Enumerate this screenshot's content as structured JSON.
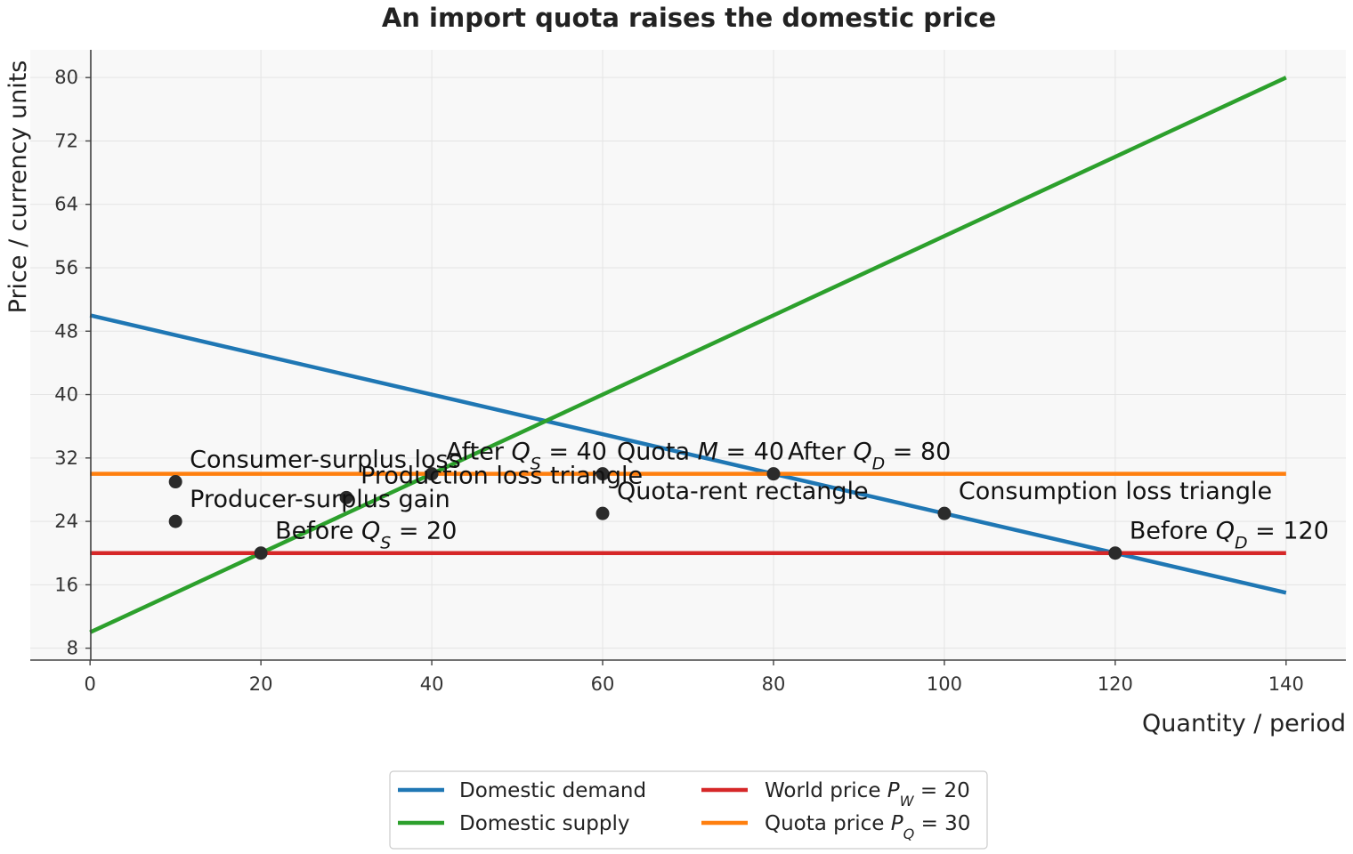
{
  "chart_data": {
    "type": "line",
    "title": "An import quota raises the domestic price",
    "xlabel": "Quantity / period",
    "ylabel": "Price / currency units",
    "xlim": [
      -7,
      147
    ],
    "ylim": [
      6.5,
      83.5
    ],
    "xticks": [
      0,
      20,
      40,
      60,
      80,
      100,
      120,
      140
    ],
    "yticks": [
      8,
      16,
      24,
      32,
      40,
      48,
      56,
      64,
      72,
      80
    ],
    "grid": true,
    "legend_position": "bottom-center",
    "series": [
      {
        "name": "Domestic demand",
        "color": "#1f77b4",
        "x": [
          0,
          140
        ],
        "y": [
          50,
          15
        ]
      },
      {
        "name": "Domestic supply",
        "color": "#2ca02c",
        "x": [
          0,
          140
        ],
        "y": [
          10,
          80
        ]
      },
      {
        "name": "World price P_W = 20",
        "name_main": "World price ",
        "name_sym": "P",
        "name_sub": "W",
        "name_tail": " = 20",
        "color": "#d62728",
        "x": [
          0,
          140
        ],
        "y": [
          20,
          20
        ]
      },
      {
        "name": "Quota price P_Q = 30",
        "name_main": "Quota price ",
        "name_sym": "P",
        "name_sub": "Q",
        "name_tail": " = 30",
        "color": "#ff7f0e",
        "x": [
          0,
          140
        ],
        "y": [
          30,
          30
        ]
      }
    ],
    "annotations": [
      {
        "x": 20,
        "y": 20,
        "label": "Before Q_S = 20",
        "main": "Before ",
        "sym": "Q",
        "sub": "S",
        "tail": " = 20"
      },
      {
        "x": 120,
        "y": 20,
        "label": "Before Q_D = 120",
        "main": "Before ",
        "sym": "Q",
        "sub": "D",
        "tail": " = 120"
      },
      {
        "x": 40,
        "y": 30,
        "label": "After Q_S = 40",
        "main": "After ",
        "sym": "Q",
        "sub": "S",
        "tail": " = 40"
      },
      {
        "x": 80,
        "y": 30,
        "label": "After Q_D = 80",
        "main": "After ",
        "sym": "Q",
        "sub": "D",
        "tail": " = 80"
      },
      {
        "x": 60,
        "y": 30,
        "label": "Quota M = 40",
        "main": "Quota ",
        "sym": "M",
        "sub": "",
        "tail": " = 40"
      },
      {
        "x": 10,
        "y": 29,
        "label": "Consumer-surplus loss",
        "main": "Consumer-surplus loss",
        "sym": "",
        "sub": "",
        "tail": ""
      },
      {
        "x": 10,
        "y": 24,
        "label": "Producer-surplus gain",
        "main": "Producer-surplus gain",
        "sym": "",
        "sub": "",
        "tail": ""
      },
      {
        "x": 60,
        "y": 25,
        "label": "Quota-rent rectangle",
        "main": "Quota-rent rectangle",
        "sym": "",
        "sub": "",
        "tail": ""
      },
      {
        "x": 30,
        "y": 27,
        "label": "Production loss triangle",
        "main": "Production loss triangle",
        "sym": "",
        "sub": "",
        "tail": ""
      },
      {
        "x": 100,
        "y": 25,
        "label": "Consumption loss triangle",
        "main": "Consumption loss triangle",
        "sym": "",
        "sub": "",
        "tail": ""
      }
    ]
  }
}
